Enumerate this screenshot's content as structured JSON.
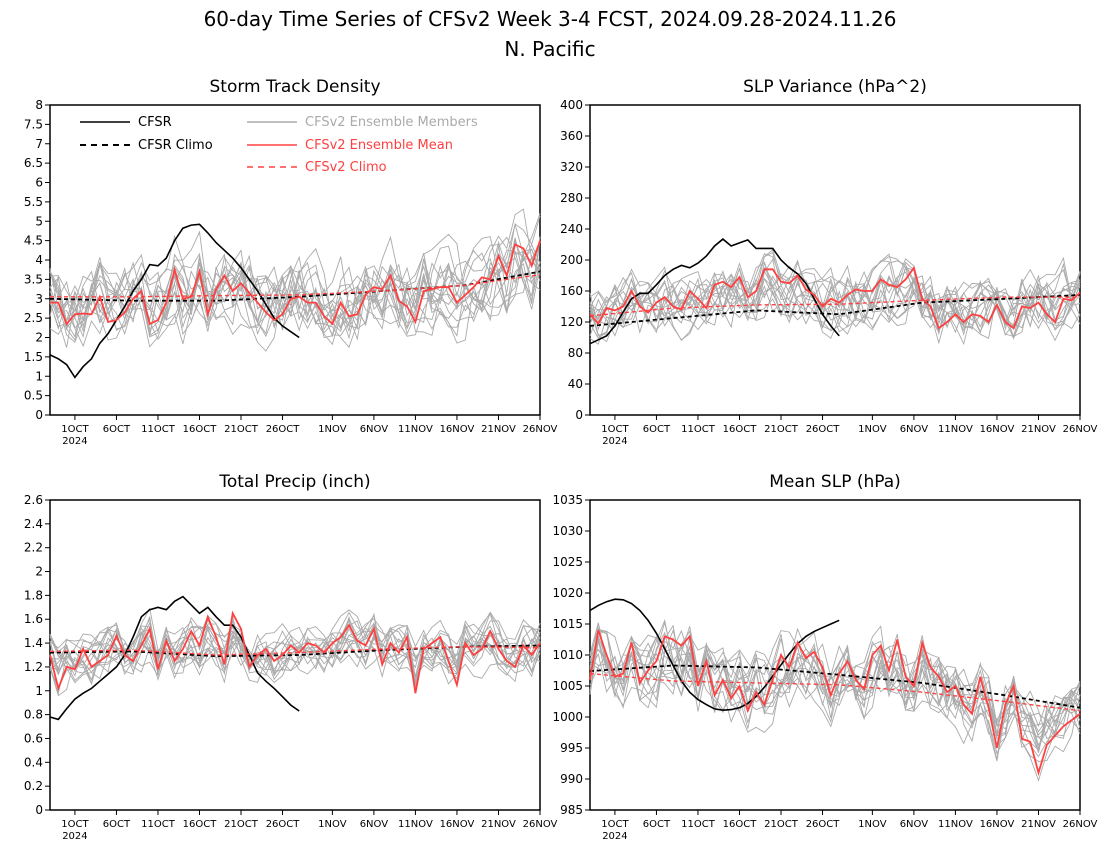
{
  "figure": {
    "title_line1": "60-day Time Series of CFSv2 Week 3-4 FCST, 2024.09.28-2024.11.26",
    "title_line2": "N. Pacific"
  },
  "legend": {
    "cfsr": "CFSR",
    "cfsr_climo": "CFSR Climo",
    "members": "CFSv2 Ensemble Members",
    "mean": "CFSv2 Ensemble Mean",
    "cfsv2_climo": "CFSv2 Climo"
  },
  "colors": {
    "observed": "#000000",
    "members": "#aaaaaa",
    "mean": "#ff4040"
  },
  "x_axis": {
    "ticks": [
      {
        "day": 3,
        "label": "1OCT",
        "sub": "2024"
      },
      {
        "day": 8,
        "label": "6OCT"
      },
      {
        "day": 13,
        "label": "11OCT"
      },
      {
        "day": 18,
        "label": "16OCT"
      },
      {
        "day": 23,
        "label": "21OCT"
      },
      {
        "day": 28,
        "label": "26OCT"
      },
      {
        "day": 34,
        "label": "1NOV"
      },
      {
        "day": 39,
        "label": "6NOV"
      },
      {
        "day": 44,
        "label": "11NOV"
      },
      {
        "day": 49,
        "label": "16NOV"
      },
      {
        "day": 54,
        "label": "21NOV"
      },
      {
        "day": 59,
        "label": "26NOV"
      }
    ]
  },
  "chart_data": [
    {
      "id": "storm",
      "type": "line",
      "title": "Storm Track Density",
      "ylim": [
        0,
        8
      ],
      "yticks": [
        "0",
        "0.5",
        "1",
        "1.5",
        "2",
        "2.5",
        "3",
        "3.5",
        "4",
        "4.5",
        "5",
        "5.5",
        "6",
        "6.5",
        "7",
        "7.5",
        "8"
      ],
      "x_start": "2024.09.28",
      "x_end": "2024.11.26",
      "member_count": 16,
      "member_spread": 0.75,
      "series": [
        {
          "name": "CFSR",
          "style": "obs",
          "x": [
            0,
            1,
            2,
            3,
            4,
            5,
            6,
            7,
            8,
            9,
            10,
            11,
            12,
            13,
            14,
            15,
            16,
            17,
            18,
            19,
            20,
            21,
            22,
            23,
            24,
            25,
            26,
            27,
            28,
            29,
            30
          ],
          "values": [
            1.55,
            1.45,
            1.3,
            0.97,
            1.25,
            1.45,
            1.85,
            2.1,
            2.45,
            2.8,
            3.2,
            3.5,
            3.88,
            3.85,
            4.05,
            4.5,
            4.82,
            4.9,
            4.92,
            4.7,
            4.45,
            4.25,
            4.05,
            3.8,
            3.5,
            3.2,
            2.85,
            2.5,
            2.3,
            2.15,
            2.0
          ]
        },
        {
          "name": "CFSR Climo",
          "style": "obs-climo",
          "x": [
            0,
            10,
            20,
            30,
            40,
            50,
            59
          ],
          "values": [
            3.0,
            2.95,
            2.95,
            3.05,
            3.2,
            3.35,
            3.7
          ]
        },
        {
          "name": "CFSv2 Ensemble Mean",
          "style": "mean",
          "x": [
            0,
            1,
            2,
            3,
            4,
            5,
            6,
            7,
            8,
            9,
            10,
            11,
            12,
            13,
            14,
            15,
            16,
            17,
            18,
            19,
            20,
            21,
            22,
            23,
            24,
            25,
            26,
            27,
            28,
            29,
            30,
            31,
            32,
            33,
            34,
            35,
            36,
            37,
            38,
            39,
            40,
            41,
            42,
            43,
            44,
            45,
            46,
            47,
            48,
            49,
            50,
            51,
            52,
            53,
            54,
            55,
            56,
            57,
            58,
            59
          ],
          "values": [
            2.9,
            2.9,
            2.35,
            2.6,
            2.62,
            2.6,
            3.05,
            2.4,
            2.45,
            2.65,
            3.0,
            3.2,
            2.35,
            2.45,
            2.9,
            3.75,
            3.0,
            3.05,
            3.7,
            2.6,
            3.25,
            3.6,
            3.2,
            3.4,
            3.15,
            2.9,
            2.65,
            2.45,
            2.6,
            3.0,
            3.05,
            2.9,
            2.9,
            2.55,
            2.35,
            2.9,
            2.55,
            2.6,
            3.1,
            3.3,
            3.25,
            3.6,
            2.95,
            2.8,
            2.4,
            3.2,
            3.25,
            3.3,
            3.3,
            2.9,
            3.1,
            3.3,
            3.55,
            3.5,
            4.1,
            3.6,
            4.4,
            4.3,
            3.85,
            4.5
          ]
        },
        {
          "name": "CFSv2 Climo",
          "style": "mean-climo",
          "x": [
            0,
            10,
            20,
            30,
            40,
            50,
            59
          ],
          "values": [
            3.05,
            3.05,
            3.08,
            3.1,
            3.2,
            3.35,
            3.62
          ]
        }
      ]
    },
    {
      "id": "slpvar",
      "type": "line",
      "title": "SLP Variance (hPa^2)",
      "ylim": [
        0,
        400
      ],
      "yticks": [
        "0",
        "40",
        "80",
        "120",
        "160",
        "200",
        "240",
        "280",
        "320",
        "360",
        "400"
      ],
      "member_count": 16,
      "member_spread": 30,
      "series": [
        {
          "name": "CFSR",
          "style": "obs",
          "x": [
            0,
            1,
            2,
            3,
            4,
            5,
            6,
            7,
            8,
            9,
            10,
            11,
            12,
            13,
            14,
            15,
            16,
            17,
            18,
            19,
            20,
            21,
            22,
            23,
            24,
            25,
            26,
            27,
            28,
            29,
            30
          ],
          "values": [
            92,
            97,
            102,
            115,
            133,
            150,
            157,
            157,
            168,
            180,
            188,
            193,
            190,
            196,
            205,
            218,
            227,
            218,
            222,
            226,
            215,
            215,
            215,
            200,
            190,
            182,
            170,
            150,
            130,
            115,
            102
          ]
        },
        {
          "name": "CFSR Climo",
          "style": "obs-climo",
          "x": [
            0,
            10,
            20,
            30,
            40,
            50,
            59
          ],
          "values": [
            115,
            125,
            135,
            130,
            145,
            150,
            155
          ]
        },
        {
          "name": "CFSv2 Ensemble Mean",
          "style": "mean",
          "x": [
            0,
            1,
            2,
            3,
            4,
            5,
            6,
            7,
            8,
            9,
            10,
            11,
            12,
            13,
            14,
            15,
            16,
            17,
            18,
            19,
            20,
            21,
            22,
            23,
            24,
            25,
            26,
            27,
            28,
            29,
            30,
            31,
            32,
            33,
            34,
            35,
            36,
            37,
            38,
            39,
            40,
            41,
            42,
            43,
            44,
            45,
            46,
            47,
            48,
            49,
            50,
            51,
            52,
            53,
            54,
            55,
            56,
            57,
            58,
            59
          ],
          "values": [
            130,
            118,
            138,
            135,
            140,
            160,
            140,
            132,
            145,
            152,
            140,
            136,
            160,
            150,
            138,
            168,
            172,
            165,
            178,
            152,
            160,
            188,
            188,
            172,
            170,
            180,
            162,
            155,
            140,
            150,
            145,
            155,
            162,
            160,
            160,
            175,
            168,
            165,
            175,
            190,
            150,
            140,
            112,
            120,
            130,
            120,
            130,
            128,
            120,
            142,
            120,
            112,
            140,
            138,
            145,
            130,
            120,
            150,
            148,
            158
          ]
        },
        {
          "name": "CFSv2 Climo",
          "style": "mean-climo",
          "x": [
            0,
            10,
            20,
            30,
            40,
            50,
            59
          ],
          "values": [
            128,
            138,
            142,
            143,
            148,
            152,
            152
          ]
        }
      ]
    },
    {
      "id": "precip",
      "type": "line",
      "title": "Total Precip (inch)",
      "ylim": [
        0,
        2.6
      ],
      "yticks": [
        "0",
        "0.2",
        "0.4",
        "0.6",
        "0.8",
        "1",
        "1.2",
        "1.4",
        "1.6",
        "1.8",
        "2",
        "2.2",
        "2.4",
        "2.6"
      ],
      "member_count": 16,
      "member_spread": 0.15,
      "series": [
        {
          "name": "CFSR",
          "style": "obs",
          "x": [
            0,
            1,
            2,
            3,
            4,
            5,
            6,
            7,
            8,
            9,
            10,
            11,
            12,
            13,
            14,
            15,
            16,
            17,
            18,
            19,
            20,
            21,
            22,
            23,
            24,
            25,
            26,
            27,
            28,
            29,
            30
          ],
          "values": [
            0.78,
            0.76,
            0.85,
            0.93,
            0.98,
            1.02,
            1.08,
            1.14,
            1.2,
            1.3,
            1.45,
            1.62,
            1.68,
            1.7,
            1.68,
            1.75,
            1.79,
            1.72,
            1.65,
            1.7,
            1.62,
            1.55,
            1.55,
            1.45,
            1.3,
            1.15,
            1.08,
            1.02,
            0.95,
            0.88,
            0.83
          ]
        },
        {
          "name": "CFSR Climo",
          "style": "obs-climo",
          "x": [
            0,
            10,
            20,
            30,
            40,
            50,
            59
          ],
          "values": [
            1.32,
            1.33,
            1.29,
            1.3,
            1.34,
            1.37,
            1.38
          ]
        },
        {
          "name": "CFSv2 Ensemble Mean",
          "style": "mean",
          "x": [
            0,
            1,
            2,
            3,
            4,
            5,
            6,
            7,
            8,
            9,
            10,
            11,
            12,
            13,
            14,
            15,
            16,
            17,
            18,
            19,
            20,
            21,
            22,
            23,
            24,
            25,
            26,
            27,
            28,
            29,
            30,
            31,
            32,
            33,
            34,
            35,
            36,
            37,
            38,
            39,
            40,
            41,
            42,
            43,
            44,
            45,
            46,
            47,
            48,
            49,
            50,
            51,
            52,
            53,
            54,
            55,
            56,
            57,
            58,
            59
          ],
          "values": [
            1.3,
            1.02,
            1.2,
            1.18,
            1.35,
            1.2,
            1.25,
            1.3,
            1.46,
            1.3,
            1.25,
            1.38,
            1.52,
            1.18,
            1.42,
            1.25,
            1.35,
            1.5,
            1.38,
            1.62,
            1.45,
            1.22,
            1.65,
            1.52,
            1.2,
            1.3,
            1.35,
            1.25,
            1.3,
            1.38,
            1.32,
            1.4,
            1.38,
            1.32,
            1.4,
            1.45,
            1.55,
            1.42,
            1.38,
            1.52,
            1.22,
            1.4,
            1.32,
            1.45,
            0.98,
            1.35,
            1.4,
            1.45,
            1.25,
            1.05,
            1.4,
            1.3,
            1.35,
            1.5,
            1.35,
            1.25,
            1.2,
            1.38,
            1.3,
            1.4
          ]
        },
        {
          "name": "CFSv2 Climo",
          "style": "mean-climo",
          "x": [
            0,
            10,
            20,
            30,
            40,
            50,
            59
          ],
          "values": [
            1.33,
            1.34,
            1.3,
            1.32,
            1.35,
            1.37,
            1.36
          ]
        }
      ]
    },
    {
      "id": "meanslp",
      "type": "line",
      "title": "Mean SLP (hPa)",
      "ylim": [
        985,
        1035
      ],
      "yticks": [
        "985",
        "990",
        "995",
        "1000",
        "1005",
        "1010",
        "1015",
        "1020",
        "1025",
        "1030",
        "1035"
      ],
      "member_count": 16,
      "member_spread": 4.0,
      "series": [
        {
          "name": "CFSR",
          "style": "obs",
          "x": [
            0,
            1,
            2,
            3,
            4,
            5,
            6,
            7,
            8,
            9,
            10,
            11,
            12,
            13,
            14,
            15,
            16,
            17,
            18,
            19,
            20,
            21,
            22,
            23,
            24,
            25,
            26,
            27,
            28,
            29,
            30
          ],
          "values": [
            1017.2,
            1018.0,
            1018.6,
            1019.0,
            1018.9,
            1018.3,
            1017.2,
            1015.6,
            1013.5,
            1011.0,
            1008.3,
            1005.8,
            1004.0,
            1002.8,
            1002.0,
            1001.3,
            1001.1,
            1001.2,
            1001.5,
            1002.2,
            1003.3,
            1004.8,
            1006.6,
            1008.4,
            1010.2,
            1011.8,
            1013.0,
            1013.8,
            1014.4,
            1015.0,
            1015.6
          ]
        },
        {
          "name": "CFSR Climo",
          "style": "obs-climo",
          "x": [
            0,
            10,
            20,
            30,
            40,
            50,
            59
          ],
          "values": [
            1007.4,
            1008.3,
            1008.0,
            1006.8,
            1005.5,
            1003.5,
            1001.5
          ]
        },
        {
          "name": "CFSv2 Ensemble Mean",
          "style": "mean",
          "x": [
            0,
            1,
            2,
            3,
            4,
            5,
            6,
            7,
            8,
            9,
            10,
            11,
            12,
            13,
            14,
            15,
            16,
            17,
            18,
            19,
            20,
            21,
            22,
            23,
            24,
            25,
            26,
            27,
            28,
            29,
            30,
            31,
            32,
            33,
            34,
            35,
            36,
            37,
            38,
            39,
            40,
            41,
            42,
            43,
            44,
            45,
            46,
            47,
            48,
            49,
            50,
            51,
            52,
            53,
            54,
            55,
            56,
            57,
            58,
            59
          ],
          "values": [
            1006.0,
            1014.0,
            1010.0,
            1006.5,
            1007.0,
            1012.0,
            1005.5,
            1007.5,
            1009.0,
            1013.0,
            1012.5,
            1011.5,
            1013.0,
            1005.0,
            1009.0,
            1003.5,
            1006.0,
            1003.0,
            1005.0,
            1001.0,
            1004.0,
            1002.0,
            1006.0,
            1010.0,
            1008.0,
            1012.0,
            1009.5,
            1010.5,
            1008.0,
            1003.5,
            1007.0,
            1009.0,
            1006.0,
            1004.5,
            1010.0,
            1011.5,
            1007.5,
            1012.5,
            1006.5,
            1005.0,
            1012.0,
            1008.0,
            1006.5,
            1004.0,
            1005.0,
            1002.0,
            1000.5,
            1006.5,
            1001.5,
            995.0,
            1002.0,
            1005.0,
            996.5,
            996.0,
            991.0,
            995.5,
            997.0,
            998.5,
            999.5,
            1000.5
          ]
        },
        {
          "name": "CFSv2 Climo",
          "style": "mean-climo",
          "x": [
            0,
            10,
            20,
            30,
            40,
            50,
            59
          ],
          "values": [
            1007.0,
            1005.8,
            1005.5,
            1005.2,
            1004.0,
            1002.5,
            1001.0
          ]
        }
      ]
    }
  ]
}
